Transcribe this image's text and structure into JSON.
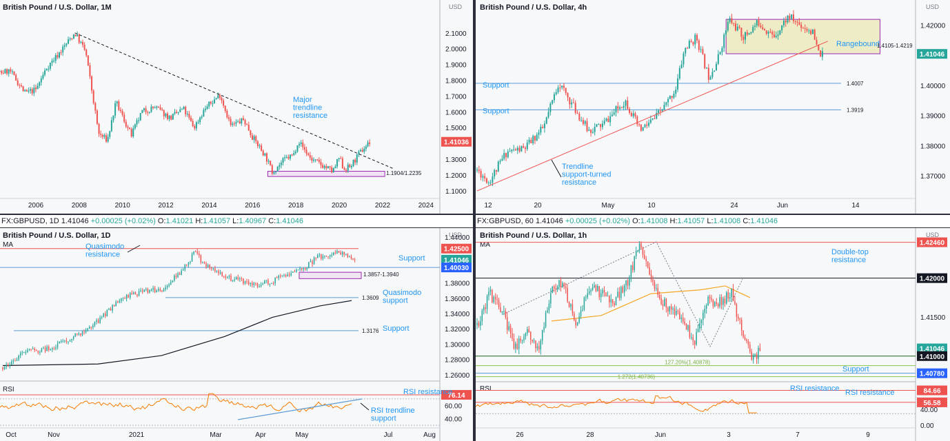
{
  "colors": {
    "up": "#26a69a",
    "down": "#ef5350",
    "level_red": "#ef5350",
    "level_blue": "#2962ff",
    "rsi": "#f57c00",
    "ma50": "#f5a623",
    "ma200": "#131722",
    "box_purple": "#9c27b0",
    "box_fill": "#e8e7b0",
    "fib_green": "#8bc34a",
    "label_blue": "#2196f3"
  },
  "infobar_left": {
    "symbol": "FX:GBPUSD, 1D",
    "last": "1.41046",
    "change": "+0.00025 (+0.02%)",
    "o": "O:",
    "o_val": "1.41021",
    "h": "H:",
    "h_val": "1.41057",
    "l": "L:",
    "l_val": "1.40967",
    "c": "C:",
    "c_val": "1.41046"
  },
  "infobar_right": {
    "symbol": "FX:GBPUSD, 60",
    "last": "1.41046",
    "change": "+0.00025 (+0.02%)",
    "o": "O:",
    "o_val": "1.41008",
    "h": "H:",
    "h_val": "1.41057",
    "l": "L:",
    "l_val": "1.41008",
    "c": "C:",
    "c_val": "1.41046"
  },
  "chart_data": [
    {
      "title": "British Pound / U.S. Dollar, 1M",
      "type": "candlestick",
      "currency": "USD",
      "yticks": [
        "2.1000",
        "2.0000",
        "1.9000",
        "1.8000",
        "1.7000",
        "1.6000",
        "1.5000",
        "1.4000",
        "1.3000",
        "1.2000",
        "1.1000"
      ],
      "xticks": [
        "2006",
        "2008",
        "2010",
        "2012",
        "2014",
        "2016",
        "2018",
        "2020",
        "2022",
        "2024"
      ],
      "ylim": [
        1.06,
        2.23
      ],
      "last_price": "1.41036",
      "path": [
        [
          2004.0,
          1.84
        ],
        [
          2004.8,
          1.86
        ],
        [
          2005.5,
          1.72
        ],
        [
          2006.0,
          1.74
        ],
        [
          2006.5,
          1.88
        ],
        [
          2007.0,
          1.96
        ],
        [
          2007.8,
          2.1
        ],
        [
          2008.3,
          1.98
        ],
        [
          2008.9,
          1.46
        ],
        [
          2009.3,
          1.42
        ],
        [
          2009.7,
          1.66
        ],
        [
          2010.4,
          1.45
        ],
        [
          2010.9,
          1.6
        ],
        [
          2011.5,
          1.63
        ],
        [
          2012.2,
          1.56
        ],
        [
          2012.8,
          1.62
        ],
        [
          2013.3,
          1.5
        ],
        [
          2013.8,
          1.62
        ],
        [
          2014.5,
          1.71
        ],
        [
          2015.0,
          1.51
        ],
        [
          2015.6,
          1.55
        ],
        [
          2016.0,
          1.44
        ],
        [
          2016.6,
          1.32
        ],
        [
          2016.9,
          1.22
        ],
        [
          2017.5,
          1.3
        ],
        [
          2017.9,
          1.33
        ],
        [
          2018.1,
          1.42
        ],
        [
          2018.7,
          1.3
        ],
        [
          2019.5,
          1.24
        ],
        [
          2019.7,
          1.22
        ],
        [
          2020.0,
          1.31
        ],
        [
          2020.2,
          1.24
        ],
        [
          2020.5,
          1.25
        ],
        [
          2020.9,
          1.33
        ],
        [
          2021.2,
          1.38
        ],
        [
          2021.4,
          1.41
        ]
      ],
      "trendline": {
        "from": [
          2007.8,
          2.1
        ],
        "to": [
          2022.5,
          1.24
        ],
        "label": "Major\ntrendline\nresistance"
      },
      "zone": {
        "x0": 2016.7,
        "x1": 2022.1,
        "y0": 1.1904,
        "y1": 1.2235,
        "label": "1.1904/1.2235"
      }
    },
    {
      "title": "British Pound / U.S. Dollar, 4h",
      "type": "candlestick",
      "currency": "USD",
      "yticks": [
        "1.42000",
        "1.41000",
        "1.40000",
        "1.39000",
        "1.38000",
        "1.37000"
      ],
      "xticks": [
        "12",
        "20",
        "May",
        "10",
        "24",
        "Jun",
        "14"
      ],
      "ylim": [
        1.3625,
        1.4265
      ],
      "last_price": "1.41046",
      "path": [
        [
          0,
          1.372
        ],
        [
          8,
          1.368
        ],
        [
          20,
          1.378
        ],
        [
          32,
          1.379
        ],
        [
          45,
          1.386
        ],
        [
          55,
          1.401
        ],
        [
          65,
          1.393
        ],
        [
          75,
          1.385
        ],
        [
          85,
          1.387
        ],
        [
          100,
          1.395
        ],
        [
          110,
          1.385
        ],
        [
          120,
          1.389
        ],
        [
          128,
          1.394
        ],
        [
          134,
          1.399
        ],
        [
          140,
          1.412
        ],
        [
          148,
          1.416
        ],
        [
          156,
          1.403
        ],
        [
          162,
          1.408
        ],
        [
          170,
          1.422
        ],
        [
          180,
          1.416
        ],
        [
          190,
          1.421
        ],
        [
          200,
          1.416
        ],
        [
          210,
          1.423
        ],
        [
          218,
          1.42
        ],
        [
          226,
          1.418
        ],
        [
          230,
          1.411
        ],
        [
          233,
          1.41
        ]
      ],
      "zone": {
        "x0": 168,
        "x1": 230,
        "y0": 1.4105,
        "y1": 1.4219,
        "label": "1.4105-1.4219",
        "tag": "Rangebound"
      },
      "levels": [
        {
          "y": 1.4007,
          "label": "1.4007",
          "tag": "Support"
        },
        {
          "y": 1.3919,
          "label": "1.3919",
          "tag": "Support"
        }
      ],
      "trendline": {
        "from": [
          0,
          1.365
        ],
        "to": [
          218,
          1.4158
        ],
        "label": "Trendline\nsupport-turned\nresistance"
      }
    },
    {
      "title": "British Pound / U.S. Dollar, 1D",
      "type": "candlestick",
      "currency": "USD",
      "ma_label": "MA",
      "yticks": [
        "1.44000",
        "1.42500",
        "1.41046",
        "1.40030",
        "1.38000",
        "1.36000",
        "1.34000",
        "1.32000",
        "1.30000",
        "1.28000",
        "1.26000"
      ],
      "xticks": [
        "Oct",
        "Nov",
        "2021",
        "Mar",
        "Apr",
        "May",
        "Jul",
        "Aug"
      ],
      "ylim": [
        1.2535,
        1.4455
      ],
      "last_price": "1.41046",
      "level_tags": [
        "1.42500",
        "1.40030"
      ],
      "path": [
        [
          0,
          1.27
        ],
        [
          15,
          1.29
        ],
        [
          30,
          1.295
        ],
        [
          45,
          1.31
        ],
        [
          60,
          1.33
        ],
        [
          75,
          1.36
        ],
        [
          90,
          1.37
        ],
        [
          100,
          1.372
        ],
        [
          110,
          1.39
        ],
        [
          118,
          1.41
        ],
        [
          122,
          1.423
        ],
        [
          126,
          1.405
        ],
        [
          135,
          1.395
        ],
        [
          145,
          1.385
        ],
        [
          160,
          1.378
        ],
        [
          170,
          1.382
        ],
        [
          180,
          1.392
        ],
        [
          190,
          1.4
        ],
        [
          200,
          1.415
        ],
        [
          212,
          1.42
        ],
        [
          222,
          1.41
        ]
      ],
      "ma200": [
        [
          0,
          1.272
        ],
        [
          60,
          1.274
        ],
        [
          100,
          1.285
        ],
        [
          140,
          1.31
        ],
        [
          170,
          1.335
        ],
        [
          200,
          1.35
        ],
        [
          220,
          1.357
        ]
      ],
      "levels": [
        {
          "y": 1.425,
          "tag": "Quasimodo\nresistance",
          "color": "red"
        },
        {
          "y": 1.4003,
          "tag": "Support",
          "color": "blue"
        },
        {
          "y": 1.3609,
          "label": "1.3609",
          "tag": "Quasimodo\nsupport",
          "color": "blue"
        },
        {
          "y": 1.3176,
          "label": "1.3176",
          "tag": "Support",
          "color": "blue"
        }
      ],
      "zone": {
        "x0": 180,
        "x1": 220,
        "y0": 1.3857,
        "y1": 1.394,
        "label": "1.3857-1.3940"
      },
      "rsi": {
        "label": "RSI",
        "yticks": [
          "80.00",
          "60.00",
          "40.00"
        ],
        "resistance": "76.14",
        "resistance_label": "RSI resistance",
        "trend_label": "RSI trendline\nsupport"
      }
    },
    {
      "title": "British Pound / U.S. Dollar, 1h",
      "type": "candlestick",
      "currency": "USD",
      "ma_label": "MA",
      "yticks": [
        "1.42460",
        "1.42000",
        "1.41500",
        "1.41046",
        "1.41000",
        "1.40780"
      ],
      "xticks": [
        "26",
        "28",
        "Jun",
        "3",
        "7",
        "9"
      ],
      "ylim": [
        1.4068,
        1.4258
      ],
      "last_price": "1.41046",
      "level_tags": [
        "1.42460",
        "1.42000",
        "1.41000",
        "1.40780"
      ],
      "path": [
        [
          0,
          1.414
        ],
        [
          10,
          1.418
        ],
        [
          20,
          1.416
        ],
        [
          30,
          1.411
        ],
        [
          40,
          1.413
        ],
        [
          50,
          1.411
        ],
        [
          60,
          1.419
        ],
        [
          70,
          1.419
        ],
        [
          80,
          1.414
        ],
        [
          90,
          1.419
        ],
        [
          100,
          1.418
        ],
        [
          110,
          1.417
        ],
        [
          120,
          1.419
        ],
        [
          130,
          1.424
        ],
        [
          135,
          1.423
        ],
        [
          145,
          1.418
        ],
        [
          155,
          1.416
        ],
        [
          165,
          1.415
        ],
        [
          175,
          1.412
        ],
        [
          185,
          1.417
        ],
        [
          195,
          1.417
        ],
        [
          205,
          1.418
        ],
        [
          212,
          1.414
        ],
        [
          218,
          1.411
        ],
        [
          222,
          1.41
        ],
        [
          228,
          1.4105
        ]
      ],
      "ma50": [
        [
          60,
          1.4145
        ],
        [
          100,
          1.4152
        ],
        [
          140,
          1.418
        ],
        [
          180,
          1.4185
        ],
        [
          200,
          1.419
        ],
        [
          220,
          1.4175
        ]
      ],
      "levels": [
        {
          "y": 1.4246,
          "tag": "Double-top\nresistance",
          "color": "red"
        },
        {
          "y": 1.42,
          "color": "black"
        },
        {
          "y": 1.41,
          "color": "green"
        },
        {
          "y": 1.4078,
          "color": "blue"
        }
      ],
      "fibs": [
        {
          "y": 1.40878,
          "label": "127.20%(1.40878)",
          "tag": "Support"
        },
        {
          "y": 1.40736,
          "label": "1.272(1.40736)"
        }
      ],
      "rsi": {
        "label": "RSI",
        "yticks": [
          "84.66",
          "56.58",
          "40.00",
          "0.00"
        ],
        "resistance_label": "RSI resistance"
      }
    }
  ]
}
